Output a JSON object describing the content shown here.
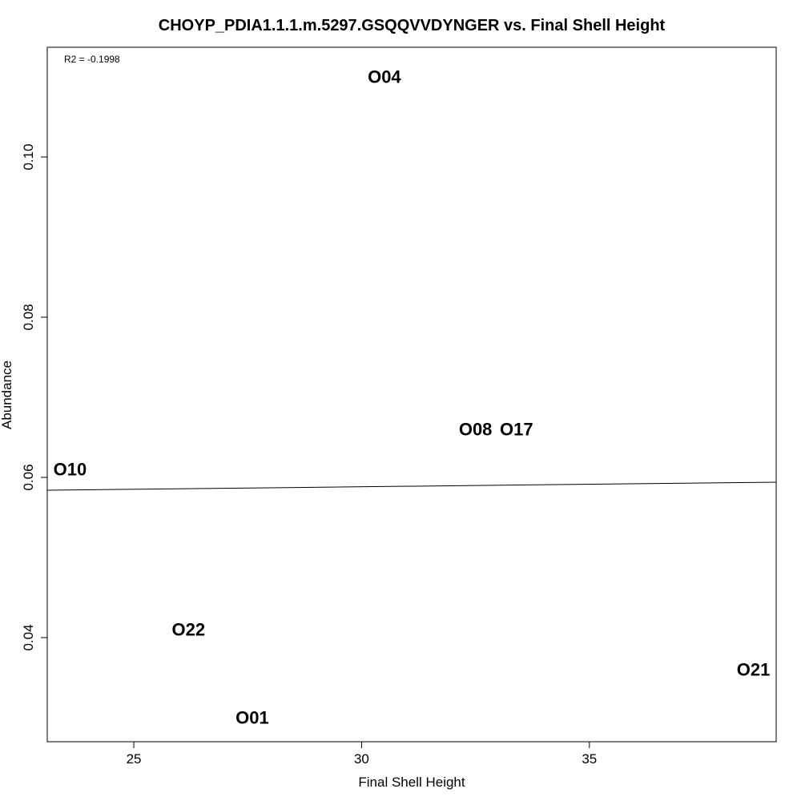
{
  "chart_data": {
    "type": "scatter",
    "title": "CHOYP_PDIA1.1.1.m.5297.GSQQVVDYNGER vs. Final Shell Height",
    "xlabel": "Final Shell Height",
    "ylabel": "Abundance",
    "xlim": [
      23.1,
      39.1
    ],
    "ylim": [
      0.027,
      0.1137
    ],
    "x_ticks": [
      25,
      30,
      35
    ],
    "y_ticks": [
      0.04,
      0.06,
      0.08,
      0.1
    ],
    "x_tick_labels": [
      "25",
      "30",
      "35"
    ],
    "y_tick_labels": [
      "0.04",
      "0.06",
      "0.08",
      "0.10"
    ],
    "grid": false,
    "legend": "none",
    "annotation": "R2 = -0.1998",
    "points": [
      {
        "label": "O04",
        "x": 30.5,
        "y": 0.11
      },
      {
        "label": "O08",
        "x": 32.5,
        "y": 0.066
      },
      {
        "label": "O17",
        "x": 33.4,
        "y": 0.066
      },
      {
        "label": "O10",
        "x": 23.6,
        "y": 0.061
      },
      {
        "label": "O22",
        "x": 26.2,
        "y": 0.041
      },
      {
        "label": "O21",
        "x": 38.6,
        "y": 0.036
      },
      {
        "label": "O01",
        "x": 27.6,
        "y": 0.03
      }
    ],
    "trend_line": {
      "x": [
        23.1,
        39.1
      ],
      "y": [
        0.0584,
        0.0594
      ]
    }
  }
}
